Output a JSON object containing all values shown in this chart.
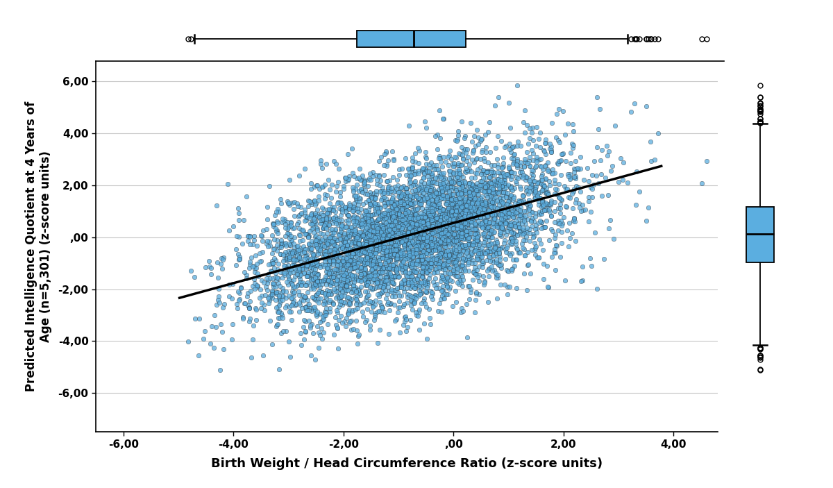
{
  "xlabel": "Birth Weight / Head Circumference Ratio (z-score units)",
  "ylabel": "Predicted Intelligence Quotient at 4 Years of\nAge (n=5,301) (z-score units)",
  "xlim": [
    -6.5,
    4.8
  ],
  "ylim": [
    -7.5,
    6.8
  ],
  "xticks": [
    -6.0,
    -4.0,
    -2.0,
    0.0,
    2.0,
    4.0
  ],
  "yticks": [
    -6.0,
    -4.0,
    -2.0,
    0.0,
    2.0,
    4.0,
    6.0
  ],
  "xtick_labels": [
    "-6,00",
    "-4,00",
    "-2,00",
    ",00",
    "2,00",
    "4,00"
  ],
  "ytick_labels": [
    "-6,00",
    "-4,00",
    "-2,00",
    ",00",
    "2,00",
    "4,00",
    "6,00"
  ],
  "scatter_color": "#5BAEE0",
  "scatter_edgecolor": "#1a1a1a",
  "scatter_alpha": 0.75,
  "scatter_size": 22,
  "regression_slope": 0.58,
  "regression_intercept": 0.55,
  "regression_color": "#000000",
  "regression_linewidth": 2.5,
  "boxplot_color": "#5BAEE0",
  "background_color": "#ffffff",
  "grid_color": "#c8c8c8",
  "n_points": 5301,
  "seed": 42,
  "x_mean": -0.5,
  "x_std": 1.3,
  "y_noise_std": 1.35
}
